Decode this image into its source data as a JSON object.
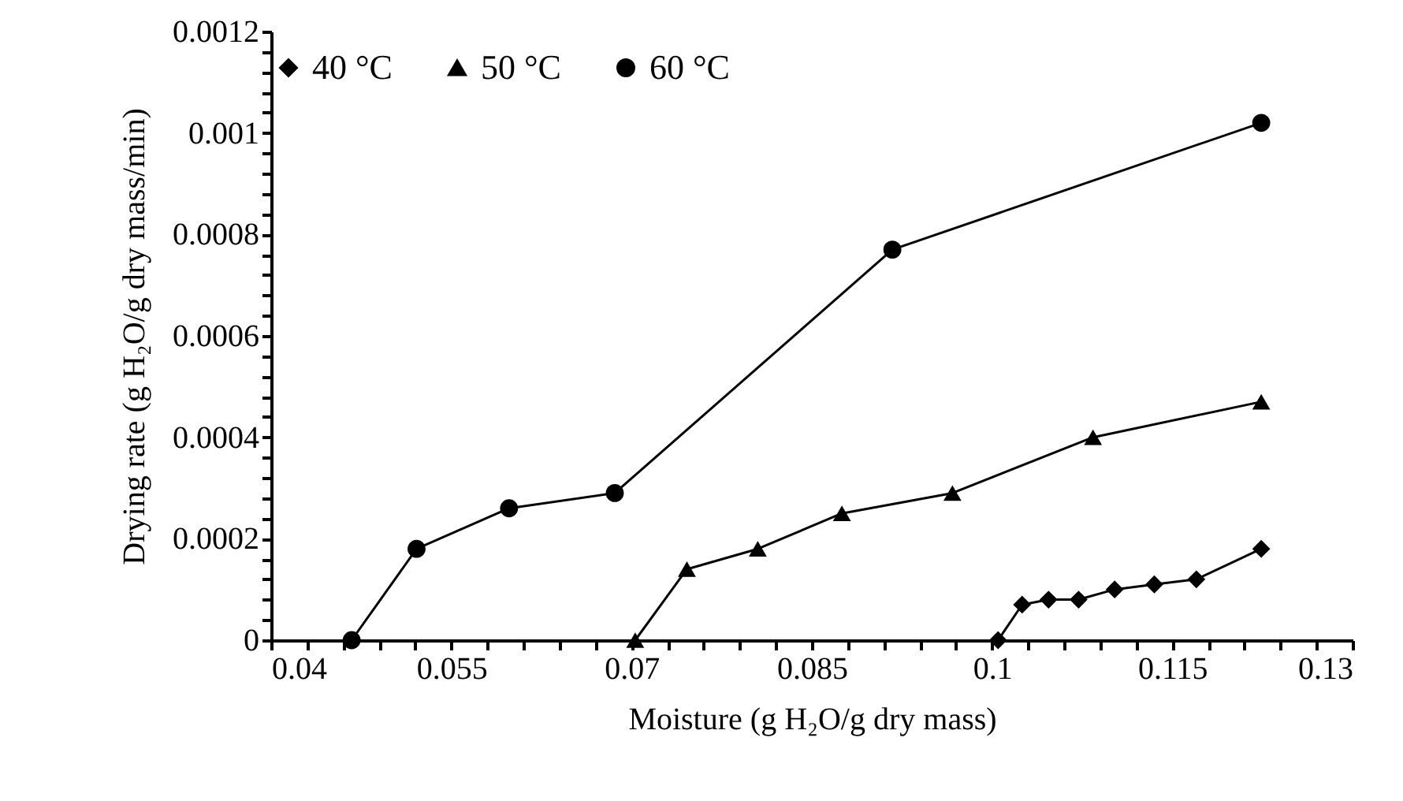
{
  "chart_data": {
    "type": "line",
    "xlabel": "Moisture (g H₂O/g dry mass)",
    "ylabel": "Drying rate (g H₂O/g dry mass/min)",
    "legend": "top",
    "grid": false,
    "line_style": "solid",
    "xlim": [
      0.04,
      0.13
    ],
    "xticks": [
      0.04,
      {
        "value": 0.043,
        "label": null
      },
      {
        "value": 0.046,
        "label": null
      },
      {
        "value": 0.049,
        "label": null
      },
      {
        "value": 0.052,
        "label": null
      },
      0.055,
      {
        "value": 0.058,
        "label": null
      },
      {
        "value": 0.061,
        "label": null
      },
      {
        "value": 0.064,
        "label": null
      },
      {
        "value": 0.067,
        "label": null
      },
      0.07,
      {
        "value": 0.073,
        "label": null
      },
      {
        "value": 0.076,
        "label": null
      },
      {
        "value": 0.079,
        "label": null
      },
      {
        "value": 0.082,
        "label": null
      },
      0.085,
      {
        "value": 0.088,
        "label": null
      },
      {
        "value": 0.091,
        "label": null
      },
      {
        "value": 0.094,
        "label": null
      },
      {
        "value": 0.097,
        "label": null
      },
      0.1,
      {
        "value": 0.103,
        "label": null
      },
      {
        "value": 0.106,
        "label": null
      },
      {
        "value": 0.109,
        "label": null
      },
      {
        "value": 0.112,
        "label": null
      },
      0.115,
      {
        "value": 0.118,
        "label": null
      },
      {
        "value": 0.121,
        "label": null
      },
      {
        "value": 0.124,
        "label": null
      },
      {
        "value": 0.127,
        "label": null
      },
      0.13
    ],
    "ylim": [
      0,
      0.0012
    ],
    "yticks": [
      0,
      {
        "value": 4e-05,
        "label": null
      },
      {
        "value": 8e-05,
        "label": null
      },
      {
        "value": 0.00012,
        "label": null
      },
      {
        "value": 0.00016,
        "label": null
      },
      0.0002,
      {
        "value": 0.00024,
        "label": null
      },
      {
        "value": 0.00028,
        "label": null
      },
      {
        "value": 0.00032,
        "label": null
      },
      {
        "value": 0.00036,
        "label": null
      },
      0.0004,
      {
        "value": 0.00044,
        "label": null
      },
      {
        "value": 0.00048,
        "label": null
      },
      {
        "value": 0.00052,
        "label": null
      },
      {
        "value": 0.00056,
        "label": null
      },
      0.0006,
      {
        "value": 0.00064,
        "label": null
      },
      {
        "value": 0.00068,
        "label": null
      },
      {
        "value": 0.00072,
        "label": null
      },
      {
        "value": 0.00076,
        "label": null
      },
      0.0008,
      {
        "value": 0.00084,
        "label": null
      },
      {
        "value": 0.00088,
        "label": null
      },
      {
        "value": 0.00092,
        "label": null
      },
      {
        "value": 0.00096,
        "label": null
      },
      0.001,
      {
        "value": 0.00104,
        "label": null
      },
      {
        "value": 0.00108,
        "label": null
      },
      {
        "value": 0.00112,
        "label": null
      },
      {
        "value": 0.00116,
        "label": null
      },
      0.0012
    ],
    "series": [
      {
        "name": "40 °C",
        "color": "#000000",
        "marker": "diamond",
        "x": [
          0.1005,
          0.1025,
          0.1047,
          0.1072,
          0.1102,
          0.1135,
          0.117,
          0.1224
        ],
        "values": [
          0,
          7e-05,
          8e-05,
          8e-05,
          0.0001,
          0.00011,
          0.00012,
          0.00018
        ]
      },
      {
        "name": "50 °C",
        "color": "#000000",
        "marker": "triangle",
        "x": [
          0.0703,
          0.0746,
          0.0805,
          0.0875,
          0.0967,
          0.1084,
          0.1224
        ],
        "values": [
          0,
          0.00014,
          0.00018,
          0.00025,
          0.00029,
          0.0004,
          0.00047
        ]
      },
      {
        "name": "60 °C",
        "color": "#000000",
        "marker": "circle",
        "x": [
          0.0467,
          0.0521,
          0.0598,
          0.0686,
          0.0917,
          0.1224
        ],
        "values": [
          0,
          0.00018,
          0.00026,
          0.00029,
          0.00077,
          0.00102
        ]
      }
    ]
  }
}
